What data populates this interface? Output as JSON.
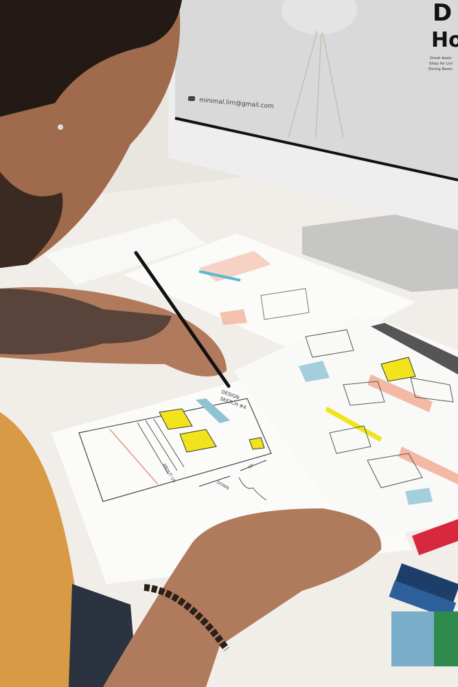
{
  "monitor": {
    "email": "minimal.lim@gmail.com",
    "headline_line1": "D",
    "headline_line2": "Ho",
    "body_lines": [
      "Great deals",
      "Shop for Livi",
      "Dining Room"
    ]
  },
  "sketch": {
    "title_line1": "DESIGN",
    "title_line2": "SKETCH #4",
    "about_label": "ABOUT US",
    "down_label": "DOWN",
    "up_label": "UP"
  },
  "colors": {
    "desk": "#f1eeea",
    "wall": "#e6e2dc",
    "paper": "#fbfbfa",
    "highlight_yellow": "#f1e31c",
    "highlight_blue": "#8ec3d3",
    "highlight_salmon": "#f2a98f",
    "shirt": "#d89a45",
    "skin": "#b27a5c",
    "monitor_screen": "#d9d9d9",
    "monitor_stand": "#c7c7c5"
  }
}
